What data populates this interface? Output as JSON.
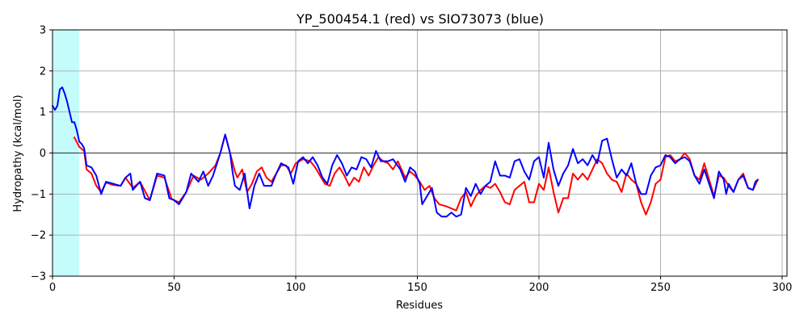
{
  "chart_data": {
    "type": "line",
    "title": "YP_500454.1 (red) vs SIO73073 (blue)",
    "xlabel": "Residues",
    "ylabel": "Hydropathy (kcal/mol)",
    "xlim": [
      0,
      302
    ],
    "ylim": [
      -3,
      3
    ],
    "xticks": [
      0,
      50,
      100,
      150,
      200,
      250,
      300
    ],
    "yticks": [
      -3,
      -2,
      -1,
      0,
      1,
      2,
      3
    ],
    "grid": true,
    "highlight_region": {
      "x_start": 0,
      "x_end": 11,
      "color": "#c4fcfc"
    },
    "reference_line": {
      "y": 0,
      "color": "#000000"
    },
    "series": [
      {
        "name": "YP_500454.1",
        "color": "#ff0000",
        "points": [
          [
            9,
            0.38
          ],
          [
            11,
            0.15
          ],
          [
            13,
            0.05
          ],
          [
            14,
            -0.4
          ],
          [
            16,
            -0.5
          ],
          [
            18,
            -0.8
          ],
          [
            20,
            -0.95
          ],
          [
            22,
            -0.72
          ],
          [
            25,
            -0.78
          ],
          [
            28,
            -0.8
          ],
          [
            30,
            -0.6
          ],
          [
            33,
            -0.85
          ],
          [
            36,
            -0.7
          ],
          [
            40,
            -1.15
          ],
          [
            43,
            -0.55
          ],
          [
            46,
            -0.6
          ],
          [
            49,
            -1.12
          ],
          [
            52,
            -1.2
          ],
          [
            55,
            -0.95
          ],
          [
            58,
            -0.55
          ],
          [
            61,
            -0.65
          ],
          [
            64,
            -0.5
          ],
          [
            67,
            -0.3
          ],
          [
            69,
            0.0
          ],
          [
            71,
            0.45
          ],
          [
            73,
            0.0
          ],
          [
            75,
            -0.45
          ],
          [
            76,
            -0.6
          ],
          [
            78,
            -0.4
          ],
          [
            80,
            -0.95
          ],
          [
            82,
            -0.75
          ],
          [
            84,
            -0.45
          ],
          [
            86,
            -0.35
          ],
          [
            88,
            -0.6
          ],
          [
            90,
            -0.7
          ],
          [
            92,
            -0.5
          ],
          [
            94,
            -0.3
          ],
          [
            96,
            -0.3
          ],
          [
            98,
            -0.5
          ],
          [
            100,
            -0.25
          ],
          [
            103,
            -0.15
          ],
          [
            106,
            -0.2
          ],
          [
            108,
            -0.35
          ],
          [
            110,
            -0.55
          ],
          [
            112,
            -0.75
          ],
          [
            114,
            -0.8
          ],
          [
            116,
            -0.5
          ],
          [
            118,
            -0.35
          ],
          [
            120,
            -0.55
          ],
          [
            122,
            -0.8
          ],
          [
            124,
            -0.6
          ],
          [
            126,
            -0.7
          ],
          [
            128,
            -0.35
          ],
          [
            130,
            -0.55
          ],
          [
            132,
            -0.3
          ],
          [
            134,
            -0.1
          ],
          [
            136,
            -0.2
          ],
          [
            138,
            -0.25
          ],
          [
            140,
            -0.4
          ],
          [
            142,
            -0.2
          ],
          [
            145,
            -0.6
          ],
          [
            147,
            -0.45
          ],
          [
            149,
            -0.55
          ],
          [
            151,
            -0.7
          ],
          [
            153,
            -0.9
          ],
          [
            155,
            -0.8
          ],
          [
            157,
            -1.1
          ],
          [
            159,
            -1.25
          ],
          [
            162,
            -1.3
          ],
          [
            164,
            -1.35
          ],
          [
            166,
            -1.4
          ],
          [
            168,
            -1.1
          ],
          [
            170,
            -0.95
          ],
          [
            172,
            -1.3
          ],
          [
            174,
            -1.05
          ],
          [
            176,
            -0.9
          ],
          [
            178,
            -0.8
          ],
          [
            180,
            -0.85
          ],
          [
            182,
            -0.75
          ],
          [
            184,
            -0.95
          ],
          [
            186,
            -1.2
          ],
          [
            188,
            -1.25
          ],
          [
            190,
            -0.9
          ],
          [
            192,
            -0.8
          ],
          [
            194,
            -0.7
          ],
          [
            196,
            -1.2
          ],
          [
            198,
            -1.2
          ],
          [
            200,
            -0.75
          ],
          [
            202,
            -0.9
          ],
          [
            204,
            -0.35
          ],
          [
            206,
            -0.95
          ],
          [
            208,
            -1.45
          ],
          [
            210,
            -1.1
          ],
          [
            212,
            -1.1
          ],
          [
            214,
            -0.5
          ],
          [
            216,
            -0.65
          ],
          [
            218,
            -0.5
          ],
          [
            220,
            -0.65
          ],
          [
            222,
            -0.4
          ],
          [
            224,
            -0.15
          ],
          [
            226,
            -0.25
          ],
          [
            228,
            -0.5
          ],
          [
            230,
            -0.65
          ],
          [
            232,
            -0.7
          ],
          [
            234,
            -0.95
          ],
          [
            236,
            -0.5
          ],
          [
            238,
            -0.65
          ],
          [
            240,
            -0.75
          ],
          [
            242,
            -1.2
          ],
          [
            244,
            -1.5
          ],
          [
            246,
            -1.2
          ],
          [
            248,
            -0.75
          ],
          [
            250,
            -0.65
          ],
          [
            252,
            -0.1
          ],
          [
            254,
            -0.05
          ],
          [
            256,
            -0.2
          ],
          [
            258,
            -0.15
          ],
          [
            260,
            0.0
          ],
          [
            262,
            -0.15
          ],
          [
            264,
            -0.55
          ],
          [
            266,
            -0.65
          ],
          [
            268,
            -0.25
          ],
          [
            270,
            -0.65
          ],
          [
            272,
            -1.05
          ],
          [
            274,
            -0.55
          ],
          [
            276,
            -0.6
          ],
          [
            278,
            -0.8
          ],
          [
            280,
            -0.95
          ],
          [
            282,
            -0.65
          ],
          [
            284,
            -0.5
          ],
          [
            286,
            -0.85
          ],
          [
            288,
            -0.9
          ],
          [
            290,
            -0.65
          ]
        ]
      },
      {
        "name": "SIO73073",
        "color": "#0000ff",
        "points": [
          [
            0,
            1.15
          ],
          [
            1,
            1.05
          ],
          [
            2,
            1.15
          ],
          [
            3,
            1.55
          ],
          [
            4,
            1.6
          ],
          [
            5,
            1.45
          ],
          [
            6,
            1.25
          ],
          [
            7,
            1.0
          ],
          [
            8,
            0.75
          ],
          [
            9,
            0.75
          ],
          [
            10,
            0.55
          ],
          [
            11,
            0.28
          ],
          [
            12,
            0.22
          ],
          [
            13,
            0.12
          ],
          [
            14,
            -0.3
          ],
          [
            16,
            -0.35
          ],
          [
            18,
            -0.55
          ],
          [
            20,
            -1.0
          ],
          [
            22,
            -0.7
          ],
          [
            25,
            -0.75
          ],
          [
            28,
            -0.8
          ],
          [
            30,
            -0.6
          ],
          [
            32,
            -0.5
          ],
          [
            33,
            -0.9
          ],
          [
            36,
            -0.7
          ],
          [
            38,
            -1.1
          ],
          [
            40,
            -1.15
          ],
          [
            43,
            -0.5
          ],
          [
            46,
            -0.55
          ],
          [
            48,
            -1.1
          ],
          [
            50,
            -1.15
          ],
          [
            52,
            -1.25
          ],
          [
            55,
            -0.95
          ],
          [
            57,
            -0.5
          ],
          [
            60,
            -0.7
          ],
          [
            62,
            -0.45
          ],
          [
            64,
            -0.8
          ],
          [
            66,
            -0.55
          ],
          [
            69,
            0.0
          ],
          [
            71,
            0.45
          ],
          [
            73,
            0.0
          ],
          [
            74,
            -0.45
          ],
          [
            75,
            -0.8
          ],
          [
            77,
            -0.9
          ],
          [
            79,
            -0.5
          ],
          [
            81,
            -1.35
          ],
          [
            83,
            -0.8
          ],
          [
            85,
            -0.5
          ],
          [
            87,
            -0.8
          ],
          [
            90,
            -0.8
          ],
          [
            92,
            -0.5
          ],
          [
            94,
            -0.25
          ],
          [
            97,
            -0.35
          ],
          [
            99,
            -0.75
          ],
          [
            101,
            -0.2
          ],
          [
            103,
            -0.1
          ],
          [
            105,
            -0.25
          ],
          [
            107,
            -0.1
          ],
          [
            109,
            -0.3
          ],
          [
            111,
            -0.6
          ],
          [
            113,
            -0.75
          ],
          [
            115,
            -0.3
          ],
          [
            117,
            -0.05
          ],
          [
            119,
            -0.25
          ],
          [
            121,
            -0.55
          ],
          [
            123,
            -0.35
          ],
          [
            125,
            -0.4
          ],
          [
            127,
            -0.1
          ],
          [
            129,
            -0.15
          ],
          [
            131,
            -0.35
          ],
          [
            133,
            0.05
          ],
          [
            135,
            -0.2
          ],
          [
            138,
            -0.2
          ],
          [
            140,
            -0.15
          ],
          [
            143,
            -0.4
          ],
          [
            145,
            -0.7
          ],
          [
            147,
            -0.35
          ],
          [
            149,
            -0.45
          ],
          [
            151,
            -0.75
          ],
          [
            152,
            -1.25
          ],
          [
            154,
            -1.05
          ],
          [
            156,
            -0.85
          ],
          [
            158,
            -1.45
          ],
          [
            160,
            -1.55
          ],
          [
            162,
            -1.55
          ],
          [
            164,
            -1.45
          ],
          [
            166,
            -1.55
          ],
          [
            168,
            -1.5
          ],
          [
            170,
            -0.85
          ],
          [
            172,
            -1.05
          ],
          [
            174,
            -0.75
          ],
          [
            176,
            -1.0
          ],
          [
            178,
            -0.8
          ],
          [
            180,
            -0.7
          ],
          [
            182,
            -0.2
          ],
          [
            184,
            -0.55
          ],
          [
            186,
            -0.55
          ],
          [
            188,
            -0.6
          ],
          [
            190,
            -0.2
          ],
          [
            192,
            -0.15
          ],
          [
            194,
            -0.45
          ],
          [
            196,
            -0.65
          ],
          [
            198,
            -0.2
          ],
          [
            200,
            -0.1
          ],
          [
            202,
            -0.6
          ],
          [
            204,
            0.25
          ],
          [
            206,
            -0.4
          ],
          [
            208,
            -0.8
          ],
          [
            210,
            -0.5
          ],
          [
            212,
            -0.3
          ],
          [
            214,
            0.1
          ],
          [
            216,
            -0.25
          ],
          [
            218,
            -0.15
          ],
          [
            220,
            -0.3
          ],
          [
            222,
            -0.05
          ],
          [
            224,
            -0.25
          ],
          [
            226,
            0.3
          ],
          [
            228,
            0.35
          ],
          [
            230,
            -0.15
          ],
          [
            232,
            -0.6
          ],
          [
            234,
            -0.4
          ],
          [
            236,
            -0.55
          ],
          [
            238,
            -0.25
          ],
          [
            240,
            -0.75
          ],
          [
            242,
            -1.0
          ],
          [
            244,
            -1.0
          ],
          [
            246,
            -0.55
          ],
          [
            248,
            -0.35
          ],
          [
            250,
            -0.3
          ],
          [
            252,
            -0.05
          ],
          [
            254,
            -0.1
          ],
          [
            256,
            -0.25
          ],
          [
            258,
            -0.15
          ],
          [
            260,
            -0.1
          ],
          [
            262,
            -0.2
          ],
          [
            264,
            -0.55
          ],
          [
            266,
            -0.75
          ],
          [
            268,
            -0.4
          ],
          [
            270,
            -0.75
          ],
          [
            272,
            -1.1
          ],
          [
            274,
            -0.45
          ],
          [
            276,
            -0.65
          ],
          [
            277,
            -1.0
          ],
          [
            278,
            -0.75
          ],
          [
            280,
            -0.95
          ],
          [
            282,
            -0.65
          ],
          [
            284,
            -0.55
          ],
          [
            286,
            -0.85
          ],
          [
            288,
            -0.9
          ],
          [
            289,
            -0.7
          ],
          [
            290,
            -0.65
          ]
        ]
      }
    ]
  }
}
